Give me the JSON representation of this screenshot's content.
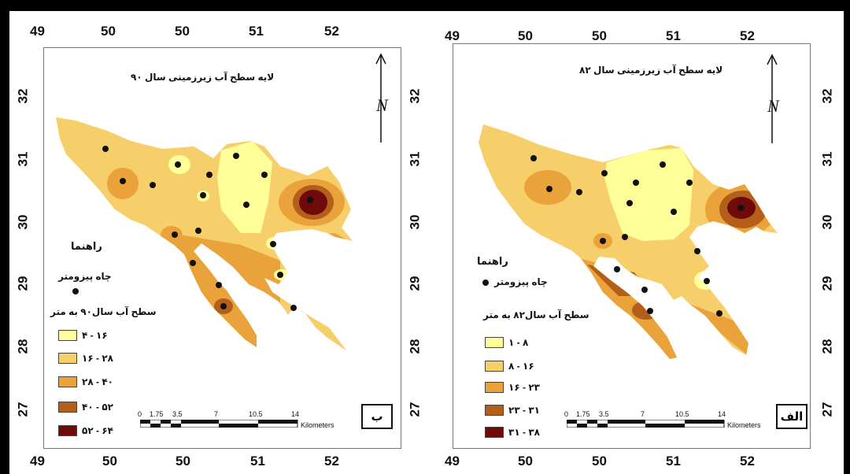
{
  "left_map": {
    "title": "لایه سطح آب زیرزمینی سال ۹۰",
    "legend_title": "راهنما",
    "well_label": "چاه پیزومتر",
    "legend_subtitle": "سطح آب سال۹۰ به متر",
    "classes": [
      {
        "label": "۴ - ۱۶",
        "color": "#ffff99"
      },
      {
        "label": "۱۶ - ۲۸",
        "color": "#f7cf6a"
      },
      {
        "label": "۲۸ - ۴۰",
        "color": "#e9a33a"
      },
      {
        "label": "۴۰ - ۵۲",
        "color": "#b35e1b"
      },
      {
        "label": "۵۲ - ۶۴",
        "color": "#6e0a0a"
      }
    ],
    "panel_letter": "ب",
    "top_ticks": [
      "49",
      "50",
      "50",
      "51",
      "52"
    ],
    "bottom_ticks": [
      "49",
      "50",
      "50",
      "51",
      "52"
    ],
    "lat_ticks": [
      "32",
      "31",
      "30",
      "29",
      "28",
      "27"
    ],
    "scale_numbers": [
      "0",
      "1.75",
      "3.5",
      "7",
      "10.5",
      "14"
    ],
    "scale_unit": "Kilometers"
  },
  "right_map": {
    "title": "لایه سطح آب زیرزمینی سال ۸۲",
    "legend_title": "راهنما",
    "well_label": "چاه پیزومتر",
    "legend_subtitle": "سطح آب سال۸۲ به متر",
    "classes": [
      {
        "label": "۱ - ۸",
        "color": "#ffff99"
      },
      {
        "label": "۸ - ۱۶",
        "color": "#f7cf6a"
      },
      {
        "label": "۱۶ - ۲۳",
        "color": "#e9a33a"
      },
      {
        "label": "۲۳ - ۳۱",
        "color": "#b35e1b"
      },
      {
        "label": "۳۱ - ۳۸",
        "color": "#6e0a0a"
      }
    ],
    "panel_letter": "الف",
    "top_ticks": [
      "49",
      "50",
      "50",
      "51",
      "52"
    ],
    "bottom_ticks": [
      "49",
      "50",
      "50",
      "51",
      "52"
    ],
    "lat_ticks": [
      "32",
      "31",
      "30",
      "29",
      "28",
      "27"
    ],
    "scale_numbers": [
      "0",
      "1.75",
      "3.5",
      "7",
      "10.5",
      "14"
    ],
    "scale_unit": "Kilometers"
  },
  "north_symbol": "N"
}
